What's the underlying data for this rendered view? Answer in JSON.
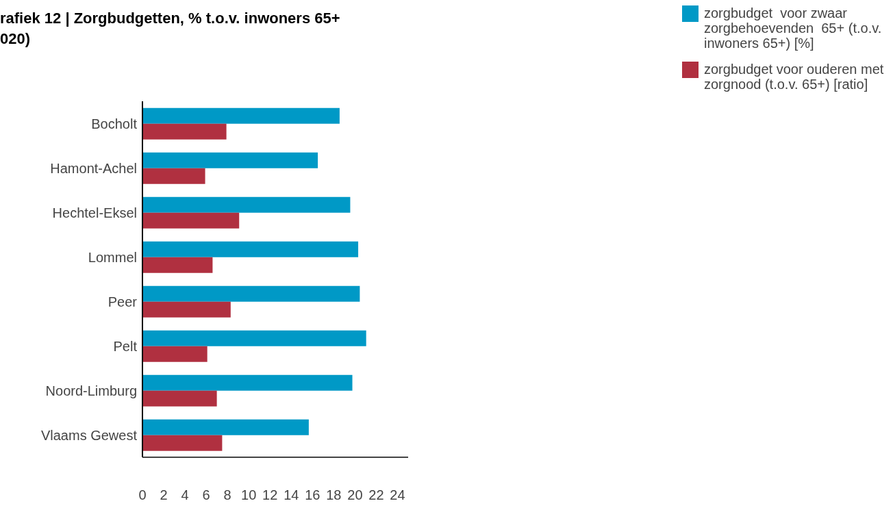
{
  "chart_data": {
    "type": "bar",
    "orientation": "horizontal",
    "title": "rafiek 12 | Zorgbudgetten, % t.o.v. inwoners 65+\n020)",
    "categories": [
      "Bocholt",
      "Hamont-Achel",
      "Hechtel-Eksel",
      "Lommel",
      "Peer",
      "Pelt",
      "Noord-Limburg",
      "Vlaams  Gewest"
    ],
    "series": [
      {
        "name": "zorgbudget  voor zwaar zorgbehoevenden  65+ (t.o.v. inwoners 65+) [%]",
        "color": "#0099c6",
        "values": [
          18.55,
          16.5,
          19.55,
          20.3,
          20.45,
          21.05,
          19.75,
          15.65
        ]
      },
      {
        "name": "zorgbudget voor ouderen met zorgnood (t.o.v. 65+) [ratio]",
        "color": "#b03040",
        "values": [
          7.9,
          5.9,
          9.1,
          6.6,
          8.3,
          6.1,
          7.0,
          7.5
        ]
      }
    ],
    "xlim": [
      0,
      25
    ],
    "xticks": [
      0,
      2,
      4,
      6,
      8,
      10,
      12,
      14,
      16,
      18,
      20,
      22,
      24
    ],
    "grid": false,
    "legend": "top right"
  }
}
